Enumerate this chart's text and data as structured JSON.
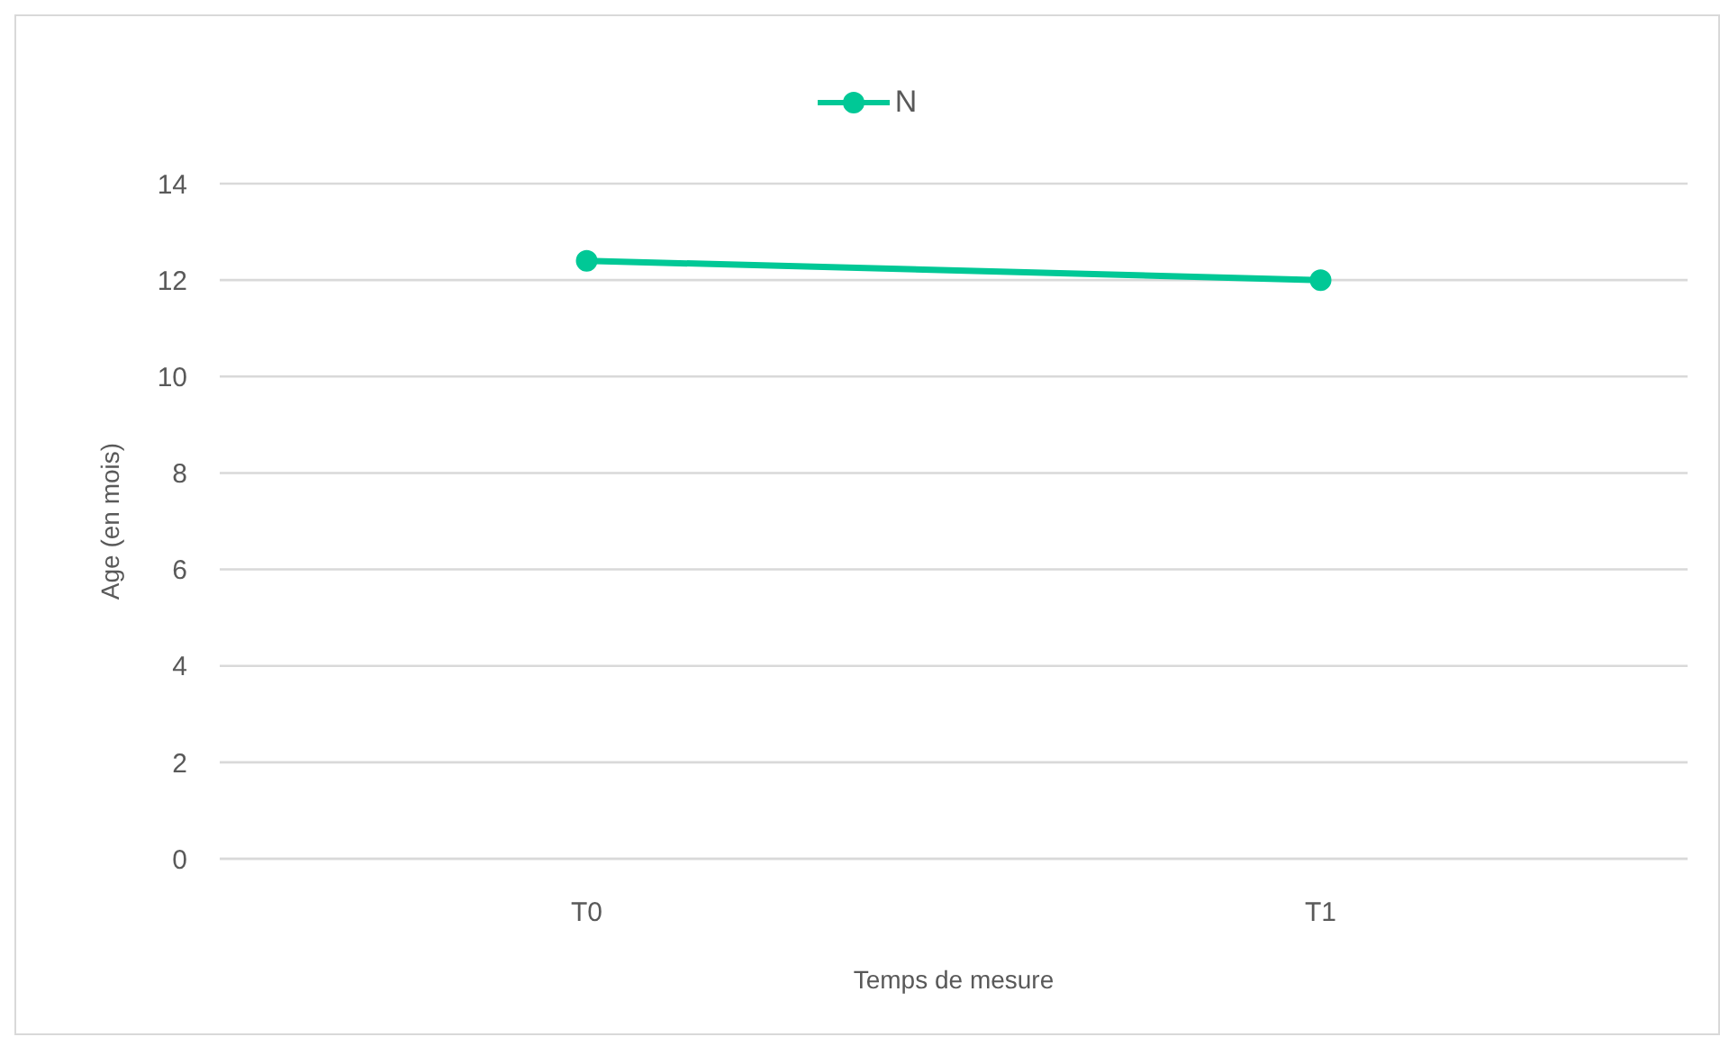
{
  "chart_data": {
    "type": "line",
    "xlabel": "Temps de mesure",
    "ylabel": "Age (en mois)",
    "categories": [
      "T0",
      "T1"
    ],
    "series": [
      {
        "name": "N",
        "color": "#00c896",
        "values": [
          12.4,
          12.0
        ]
      }
    ],
    "ylim": [
      0,
      14
    ],
    "yticks": [
      0,
      2,
      4,
      6,
      8,
      10,
      12,
      14
    ],
    "grid": "y",
    "legend": "top",
    "marker": "circle",
    "line_style": "solid"
  }
}
